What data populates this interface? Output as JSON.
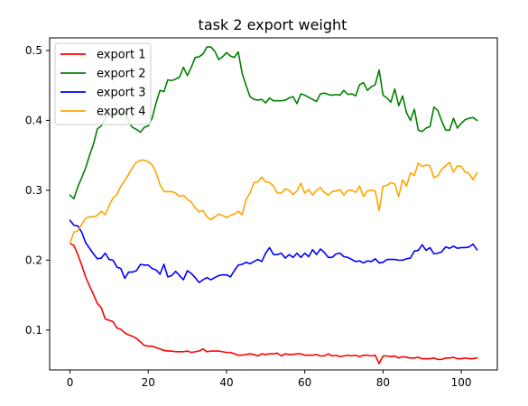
{
  "chart_data": {
    "type": "line",
    "title": "task 2 export weight",
    "xlabel": "",
    "ylabel": "",
    "xlim": [
      -5.2,
      109.2
    ],
    "ylim": [
      0.043,
      0.518
    ],
    "xticks": [
      0,
      20,
      40,
      60,
      80,
      100
    ],
    "yticks": [
      0.1,
      0.2,
      0.3,
      0.4,
      0.5
    ],
    "xtick_labels": [
      "0",
      "20",
      "40",
      "60",
      "80",
      "100"
    ],
    "ytick_labels": [
      "0.1",
      "0.2",
      "0.3",
      "0.4",
      "0.5"
    ],
    "grid": false,
    "legend_position": "upper-left",
    "x": [
      0,
      1,
      2,
      3,
      4,
      5,
      6,
      7,
      8,
      9,
      10,
      11,
      12,
      13,
      14,
      15,
      16,
      17,
      18,
      19,
      20,
      21,
      22,
      23,
      24,
      25,
      26,
      27,
      28,
      29,
      30,
      31,
      32,
      33,
      34,
      35,
      36,
      37,
      38,
      39,
      40,
      41,
      42,
      43,
      44,
      45,
      46,
      47,
      48,
      49,
      50,
      51,
      52,
      53,
      54,
      55,
      56,
      57,
      58,
      59,
      60,
      61,
      62,
      63,
      64,
      65,
      66,
      67,
      68,
      69,
      70,
      71,
      72,
      73,
      74,
      75,
      76,
      77,
      78,
      79,
      80,
      81,
      82,
      83,
      84,
      85,
      86,
      87,
      88,
      89,
      90,
      91,
      92,
      93,
      94,
      95,
      96,
      97,
      98,
      99,
      100,
      101,
      102,
      103,
      104
    ],
    "series": [
      {
        "name": "export 1",
        "color": "#ff0000",
        "values": [
          0.224,
          0.221,
          0.208,
          0.193,
          0.176,
          0.163,
          0.151,
          0.138,
          0.132,
          0.116,
          0.114,
          0.112,
          0.103,
          0.101,
          0.096,
          0.093,
          0.091,
          0.088,
          0.083,
          0.078,
          0.077,
          0.077,
          0.075,
          0.073,
          0.071,
          0.07,
          0.07,
          0.069,
          0.069,
          0.069,
          0.07,
          0.068,
          0.069,
          0.07,
          0.073,
          0.069,
          0.07,
          0.07,
          0.07,
          0.069,
          0.068,
          0.068,
          0.066,
          0.064,
          0.064,
          0.065,
          0.066,
          0.065,
          0.063,
          0.066,
          0.065,
          0.066,
          0.066,
          0.067,
          0.063,
          0.066,
          0.065,
          0.065,
          0.066,
          0.066,
          0.064,
          0.064,
          0.064,
          0.065,
          0.063,
          0.063,
          0.066,
          0.063,
          0.064,
          0.062,
          0.063,
          0.064,
          0.063,
          0.064,
          0.062,
          0.064,
          0.064,
          0.063,
          0.064,
          0.052,
          0.063,
          0.063,
          0.062,
          0.063,
          0.06,
          0.062,
          0.061,
          0.06,
          0.06,
          0.061,
          0.059,
          0.059,
          0.059,
          0.06,
          0.058,
          0.058,
          0.06,
          0.06,
          0.061,
          0.059,
          0.059,
          0.06,
          0.059,
          0.059,
          0.06
        ]
      },
      {
        "name": "export 2",
        "color": "#008000",
        "values": [
          0.293,
          0.288,
          0.305,
          0.318,
          0.332,
          0.35,
          0.366,
          0.388,
          0.392,
          0.403,
          0.411,
          0.403,
          0.415,
          0.406,
          0.413,
          0.397,
          0.39,
          0.387,
          0.383,
          0.39,
          0.392,
          0.403,
          0.425,
          0.443,
          0.441,
          0.458,
          0.457,
          0.459,
          0.462,
          0.476,
          0.464,
          0.476,
          0.49,
          0.491,
          0.495,
          0.505,
          0.505,
          0.499,
          0.487,
          0.491,
          0.497,
          0.492,
          0.49,
          0.498,
          0.467,
          0.45,
          0.434,
          0.43,
          0.429,
          0.43,
          0.425,
          0.432,
          0.428,
          0.428,
          0.428,
          0.429,
          0.432,
          0.434,
          0.424,
          0.438,
          0.436,
          0.433,
          0.43,
          0.427,
          0.438,
          0.439,
          0.437,
          0.436,
          0.437,
          0.436,
          0.443,
          0.437,
          0.438,
          0.435,
          0.451,
          0.454,
          0.443,
          0.448,
          0.451,
          0.472,
          0.436,
          0.432,
          0.426,
          0.445,
          0.421,
          0.435,
          0.411,
          0.4,
          0.416,
          0.386,
          0.384,
          0.389,
          0.391,
          0.419,
          0.414,
          0.399,
          0.386,
          0.386,
          0.403,
          0.389,
          0.396,
          0.401,
          0.403,
          0.404,
          0.4
        ]
      },
      {
        "name": "export 3",
        "color": "#0000ff",
        "values": [
          0.257,
          0.25,
          0.249,
          0.24,
          0.225,
          0.217,
          0.209,
          0.202,
          0.203,
          0.21,
          0.201,
          0.2,
          0.19,
          0.188,
          0.174,
          0.183,
          0.183,
          0.185,
          0.194,
          0.193,
          0.193,
          0.188,
          0.186,
          0.18,
          0.194,
          0.176,
          0.178,
          0.184,
          0.178,
          0.172,
          0.185,
          0.181,
          0.175,
          0.168,
          0.172,
          0.175,
          0.172,
          0.175,
          0.178,
          0.179,
          0.179,
          0.176,
          0.185,
          0.193,
          0.194,
          0.197,
          0.195,
          0.198,
          0.201,
          0.198,
          0.21,
          0.218,
          0.208,
          0.208,
          0.21,
          0.203,
          0.208,
          0.204,
          0.21,
          0.204,
          0.21,
          0.205,
          0.215,
          0.208,
          0.216,
          0.211,
          0.204,
          0.204,
          0.209,
          0.21,
          0.205,
          0.204,
          0.201,
          0.198,
          0.199,
          0.196,
          0.199,
          0.198,
          0.202,
          0.196,
          0.197,
          0.201,
          0.201,
          0.201,
          0.2,
          0.2,
          0.202,
          0.203,
          0.213,
          0.214,
          0.222,
          0.214,
          0.218,
          0.209,
          0.21,
          0.212,
          0.219,
          0.217,
          0.22,
          0.217,
          0.218,
          0.218,
          0.219,
          0.223,
          0.215
        ]
      },
      {
        "name": "export 4",
        "color": "#ffa500",
        "values": [
          0.224,
          0.24,
          0.242,
          0.251,
          0.26,
          0.262,
          0.262,
          0.264,
          0.27,
          0.265,
          0.278,
          0.289,
          0.294,
          0.306,
          0.314,
          0.323,
          0.333,
          0.34,
          0.343,
          0.343,
          0.341,
          0.336,
          0.326,
          0.308,
          0.298,
          0.298,
          0.298,
          0.296,
          0.291,
          0.293,
          0.287,
          0.283,
          0.275,
          0.269,
          0.271,
          0.262,
          0.258,
          0.262,
          0.266,
          0.264,
          0.261,
          0.264,
          0.266,
          0.27,
          0.265,
          0.287,
          0.296,
          0.311,
          0.312,
          0.319,
          0.312,
          0.311,
          0.306,
          0.296,
          0.296,
          0.302,
          0.3,
          0.294,
          0.299,
          0.31,
          0.296,
          0.301,
          0.293,
          0.3,
          0.304,
          0.297,
          0.293,
          0.298,
          0.299,
          0.301,
          0.293,
          0.3,
          0.3,
          0.297,
          0.306,
          0.291,
          0.299,
          0.3,
          0.299,
          0.271,
          0.306,
          0.307,
          0.311,
          0.309,
          0.291,
          0.315,
          0.306,
          0.325,
          0.321,
          0.339,
          0.334,
          0.336,
          0.335,
          0.318,
          0.321,
          0.33,
          0.335,
          0.34,
          0.326,
          0.335,
          0.334,
          0.326,
          0.324,
          0.315,
          0.325
        ]
      }
    ]
  }
}
